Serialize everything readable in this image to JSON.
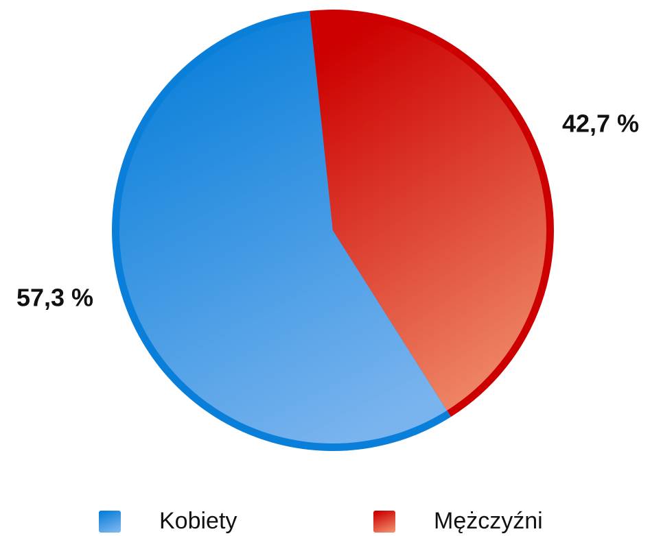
{
  "chart_data": {
    "type": "pie",
    "categories": [
      "Kobiety",
      "Mężczyźni"
    ],
    "values": [
      57.3,
      42.7
    ],
    "value_labels": [
      "57,3 %",
      "42,7 %"
    ],
    "colors": [
      [
        "#0a7fd9",
        "#7ab4ee"
      ],
      [
        "#cc0000",
        "#ef8a68"
      ]
    ],
    "legend": "bottom"
  }
}
